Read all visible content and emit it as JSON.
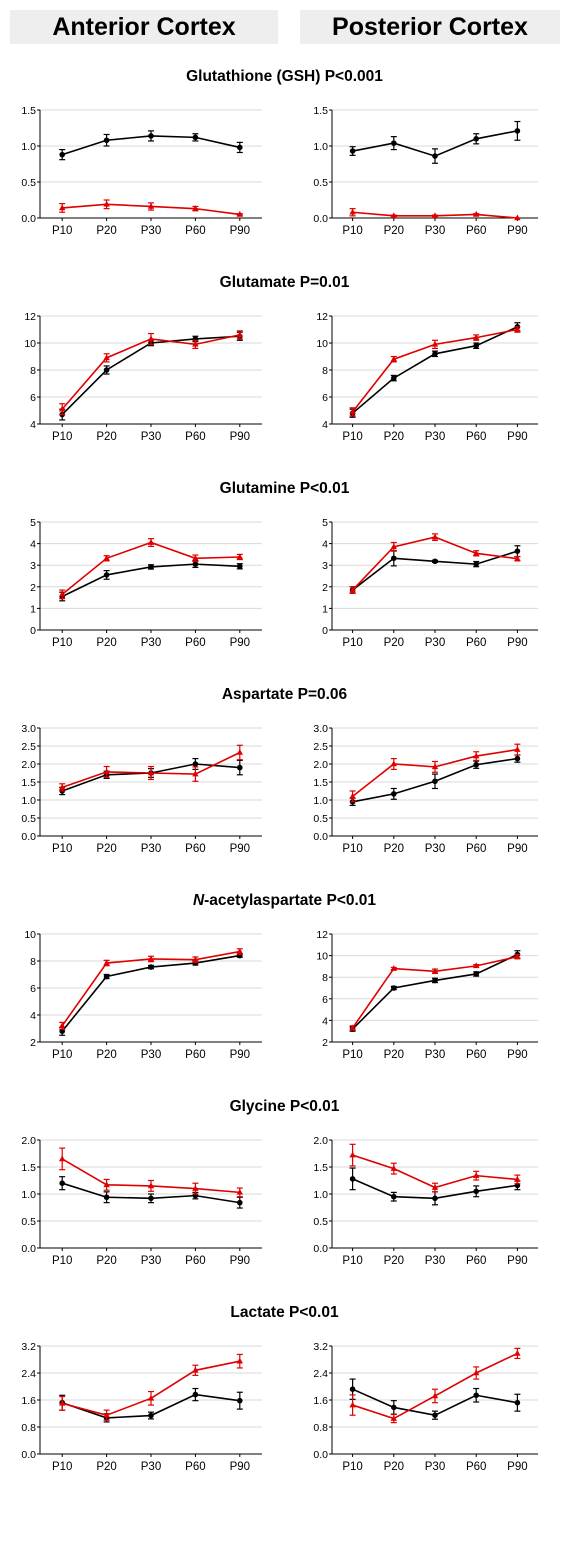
{
  "headers": {
    "left": "Anterior Cortex",
    "right": "Posterior Cortex"
  },
  "colors": {
    "series_a": "#000000",
    "series_b": "#e00000",
    "grid": "#d9d9d9",
    "axis": "#000000"
  },
  "chart_data": [
    {
      "type": "line",
      "title": {
        "prefix": "",
        "italic": "",
        "text": "Glutathione (GSH) P<0.001"
      },
      "categories": [
        "P10",
        "P20",
        "P30",
        "P60",
        "P90"
      ],
      "panels": [
        {
          "region": "Anterior Cortex",
          "ylim": [
            0,
            1.5
          ],
          "yticks": [
            "0.0",
            "0.5",
            "1.0",
            "1.5"
          ],
          "series": [
            {
              "color": "#000000",
              "marker": "circle",
              "values": [
                0.88,
                1.08,
                1.14,
                1.12,
                0.98
              ],
              "errors": [
                0.07,
                0.08,
                0.07,
                0.05,
                0.07
              ]
            },
            {
              "color": "#e00000",
              "marker": "triangle",
              "values": [
                0.14,
                0.19,
                0.16,
                0.13,
                0.05
              ],
              "errors": [
                0.06,
                0.06,
                0.05,
                0.03,
                0.01
              ]
            }
          ]
        },
        {
          "region": "Posterior Cortex",
          "ylim": [
            0,
            1.5
          ],
          "yticks": [
            "0.0",
            "0.5",
            "1.0",
            "1.5"
          ],
          "series": [
            {
              "color": "#000000",
              "marker": "circle",
              "values": [
                0.93,
                1.04,
                0.86,
                1.1,
                1.21
              ],
              "errors": [
                0.06,
                0.09,
                0.1,
                0.07,
                0.13
              ]
            },
            {
              "color": "#e00000",
              "marker": "triangle",
              "values": [
                0.08,
                0.03,
                0.03,
                0.05,
                0.0
              ],
              "errors": [
                0.05,
                0.01,
                0.01,
                0.01,
                0.0
              ]
            }
          ]
        }
      ]
    },
    {
      "type": "line",
      "title": {
        "prefix": "",
        "italic": "",
        "text": "Glutamate P=0.01"
      },
      "categories": [
        "P10",
        "P20",
        "P30",
        "P60",
        "P90"
      ],
      "panels": [
        {
          "region": "Anterior Cortex",
          "ylim": [
            4,
            12
          ],
          "yticks": [
            "4",
            "6",
            "8",
            "10",
            "12"
          ],
          "series": [
            {
              "color": "#000000",
              "marker": "circle",
              "values": [
                4.7,
                8.0,
                10.0,
                10.3,
                10.5
              ],
              "errors": [
                0.4,
                0.3,
                0.2,
                0.2,
                0.3
              ]
            },
            {
              "color": "#e00000",
              "marker": "triangle",
              "values": [
                5.1,
                8.9,
                10.3,
                9.9,
                10.6
              ],
              "errors": [
                0.4,
                0.3,
                0.4,
                0.3,
                0.3
              ]
            }
          ]
        },
        {
          "region": "Posterior Cortex",
          "ylim": [
            4,
            12
          ],
          "yticks": [
            "4",
            "6",
            "8",
            "10",
            "12"
          ],
          "series": [
            {
              "color": "#000000",
              "marker": "circle",
              "values": [
                4.8,
                7.4,
                9.2,
                9.8,
                11.2
              ],
              "errors": [
                0.3,
                0.2,
                0.2,
                0.2,
                0.3
              ]
            },
            {
              "color": "#e00000",
              "marker": "triangle",
              "values": [
                4.9,
                8.8,
                9.9,
                10.4,
                11.0
              ],
              "errors": [
                0.3,
                0.2,
                0.3,
                0.2,
                0.2
              ]
            }
          ]
        }
      ]
    },
    {
      "type": "line",
      "title": {
        "prefix": "",
        "italic": "",
        "text": "Glutamine P<0.01"
      },
      "categories": [
        "P10",
        "P20",
        "P30",
        "P60",
        "P90"
      ],
      "panels": [
        {
          "region": "Anterior Cortex",
          "ylim": [
            0,
            5
          ],
          "yticks": [
            "0",
            "1",
            "2",
            "3",
            "4",
            "5"
          ],
          "series": [
            {
              "color": "#000000",
              "marker": "circle",
              "values": [
                1.55,
                2.55,
                2.92,
                3.05,
                2.95
              ],
              "errors": [
                0.2,
                0.2,
                0.1,
                0.15,
                0.12
              ]
            },
            {
              "color": "#e00000",
              "marker": "triangle",
              "values": [
                1.65,
                3.32,
                4.05,
                3.32,
                3.38
              ],
              "errors": [
                0.2,
                0.12,
                0.18,
                0.15,
                0.12
              ]
            }
          ]
        },
        {
          "region": "Posterior Cortex",
          "ylim": [
            0,
            5
          ],
          "yticks": [
            "0",
            "1",
            "2",
            "3",
            "4",
            "5"
          ],
          "series": [
            {
              "color": "#000000",
              "marker": "circle",
              "values": [
                1.85,
                3.32,
                3.18,
                3.05,
                3.65
              ],
              "errors": [
                0.15,
                0.35,
                0.05,
                0.12,
                0.25
              ]
            },
            {
              "color": "#e00000",
              "marker": "triangle",
              "values": [
                1.85,
                3.85,
                4.3,
                3.55,
                3.3
              ],
              "errors": [
                0.15,
                0.2,
                0.15,
                0.12,
                0.1
              ]
            }
          ]
        }
      ]
    },
    {
      "type": "line",
      "title": {
        "prefix": "",
        "italic": "",
        "text": "Aspartate P=0.06"
      },
      "categories": [
        "P10",
        "P20",
        "P30",
        "P60",
        "P90"
      ],
      "panels": [
        {
          "region": "Anterior Cortex",
          "ylim": [
            0,
            3
          ],
          "yticks": [
            "0.0",
            "0.5",
            "1.0",
            "1.5",
            "2.0",
            "2.5",
            "3.0"
          ],
          "series": [
            {
              "color": "#000000",
              "marker": "circle",
              "values": [
                1.25,
                1.7,
                1.75,
                2.0,
                1.9
              ],
              "errors": [
                0.1,
                0.1,
                0.12,
                0.15,
                0.2
              ]
            },
            {
              "color": "#e00000",
              "marker": "triangle",
              "values": [
                1.35,
                1.78,
                1.75,
                1.72,
                2.32
              ],
              "errors": [
                0.1,
                0.15,
                0.18,
                0.2,
                0.2
              ]
            }
          ]
        },
        {
          "region": "Posterior Cortex",
          "ylim": [
            0,
            3
          ],
          "yticks": [
            "0.0",
            "0.5",
            "1.0",
            "1.5",
            "2.0",
            "2.5",
            "3.0"
          ],
          "series": [
            {
              "color": "#000000",
              "marker": "circle",
              "values": [
                0.95,
                1.17,
                1.52,
                1.98,
                2.15
              ],
              "errors": [
                0.1,
                0.15,
                0.2,
                0.1,
                0.1
              ]
            },
            {
              "color": "#e00000",
              "marker": "triangle",
              "values": [
                1.1,
                2.0,
                1.92,
                2.22,
                2.4
              ],
              "errors": [
                0.15,
                0.15,
                0.15,
                0.12,
                0.15
              ]
            }
          ]
        }
      ]
    },
    {
      "type": "line",
      "title": {
        "prefix": "",
        "italic": "N",
        "text": "-acetylaspartate P<0.01"
      },
      "categories": [
        "P10",
        "P20",
        "P30",
        "P60",
        "P90"
      ],
      "panels": [
        {
          "region": "Anterior Cortex",
          "ylim": [
            2,
            10
          ],
          "yticks": [
            "2",
            "4",
            "6",
            "8",
            "10"
          ],
          "series": [
            {
              "color": "#000000",
              "marker": "circle",
              "values": [
                2.8,
                6.85,
                7.55,
                7.85,
                8.4
              ],
              "errors": [
                0.3,
                0.15,
                0.12,
                0.15,
                0.12
              ]
            },
            {
              "color": "#e00000",
              "marker": "triangle",
              "values": [
                3.2,
                7.85,
                8.15,
                8.1,
                8.7
              ],
              "errors": [
                0.25,
                0.2,
                0.2,
                0.2,
                0.2
              ]
            }
          ]
        },
        {
          "region": "Posterior Cortex",
          "ylim": [
            2,
            12
          ],
          "yticks": [
            "2",
            "4",
            "6",
            "8",
            "10",
            "12"
          ],
          "series": [
            {
              "color": "#000000",
              "marker": "circle",
              "values": [
                3.2,
                7.0,
                7.7,
                8.3,
                10.1
              ],
              "errors": [
                0.2,
                0.15,
                0.2,
                0.2,
                0.35
              ]
            },
            {
              "color": "#e00000",
              "marker": "triangle",
              "values": [
                3.3,
                8.8,
                8.55,
                9.05,
                9.9
              ],
              "errors": [
                0.2,
                0.1,
                0.2,
                0.12,
                0.2
              ]
            }
          ]
        }
      ]
    },
    {
      "type": "line",
      "title": {
        "prefix": "",
        "italic": "",
        "text": "Glycine P<0.01"
      },
      "categories": [
        "P10",
        "P20",
        "P30",
        "P60",
        "P90"
      ],
      "panels": [
        {
          "region": "Anterior Cortex",
          "ylim": [
            0,
            2
          ],
          "yticks": [
            "0.0",
            "0.5",
            "1.0",
            "1.5",
            "2.0"
          ],
          "series": [
            {
              "color": "#000000",
              "marker": "circle",
              "values": [
                1.2,
                0.94,
                0.92,
                0.97,
                0.84
              ],
              "errors": [
                0.12,
                0.1,
                0.08,
                0.06,
                0.1
              ]
            },
            {
              "color": "#e00000",
              "marker": "triangle",
              "values": [
                1.65,
                1.17,
                1.15,
                1.1,
                1.03
              ],
              "errors": [
                0.2,
                0.1,
                0.1,
                0.1,
                0.08
              ]
            }
          ]
        },
        {
          "region": "Posterior Cortex",
          "ylim": [
            0,
            2
          ],
          "yticks": [
            "0.0",
            "0.5",
            "1.0",
            "1.5",
            "2.0"
          ],
          "series": [
            {
              "color": "#000000",
              "marker": "circle",
              "values": [
                1.28,
                0.95,
                0.92,
                1.05,
                1.16
              ],
              "errors": [
                0.2,
                0.08,
                0.12,
                0.1,
                0.08
              ]
            },
            {
              "color": "#e00000",
              "marker": "triangle",
              "values": [
                1.72,
                1.47,
                1.12,
                1.34,
                1.27
              ],
              "errors": [
                0.2,
                0.1,
                0.08,
                0.08,
                0.08
              ]
            }
          ]
        }
      ]
    },
    {
      "type": "line",
      "title": {
        "prefix": "",
        "italic": "",
        "text": "Lactate P<0.01"
      },
      "categories": [
        "P10",
        "P20",
        "P30",
        "P60",
        "P90"
      ],
      "panels": [
        {
          "region": "Anterior Cortex",
          "ylim": [
            0,
            3.2
          ],
          "yticks": [
            "0.0",
            "0.8",
            "1.6",
            "2.4",
            "3.2"
          ],
          "series": [
            {
              "color": "#000000",
              "marker": "circle",
              "values": [
                1.52,
                1.07,
                1.14,
                1.76,
                1.58
              ],
              "errors": [
                0.22,
                0.12,
                0.1,
                0.18,
                0.25
              ]
            },
            {
              "color": "#e00000",
              "marker": "triangle",
              "values": [
                1.5,
                1.15,
                1.65,
                2.48,
                2.75
              ],
              "errors": [
                0.2,
                0.15,
                0.2,
                0.15,
                0.2
              ]
            }
          ]
        },
        {
          "region": "Posterior Cortex",
          "ylim": [
            0,
            3.2
          ],
          "yticks": [
            "0.0",
            "0.8",
            "1.6",
            "2.4",
            "3.2"
          ],
          "series": [
            {
              "color": "#000000",
              "marker": "circle",
              "values": [
                1.92,
                1.38,
                1.15,
                1.74,
                1.52
              ],
              "errors": [
                0.3,
                0.2,
                0.12,
                0.2,
                0.25
              ]
            },
            {
              "color": "#e00000",
              "marker": "triangle",
              "values": [
                1.45,
                1.05,
                1.72,
                2.4,
                2.98
              ],
              "errors": [
                0.3,
                0.12,
                0.2,
                0.18,
                0.15
              ]
            }
          ]
        }
      ]
    }
  ]
}
